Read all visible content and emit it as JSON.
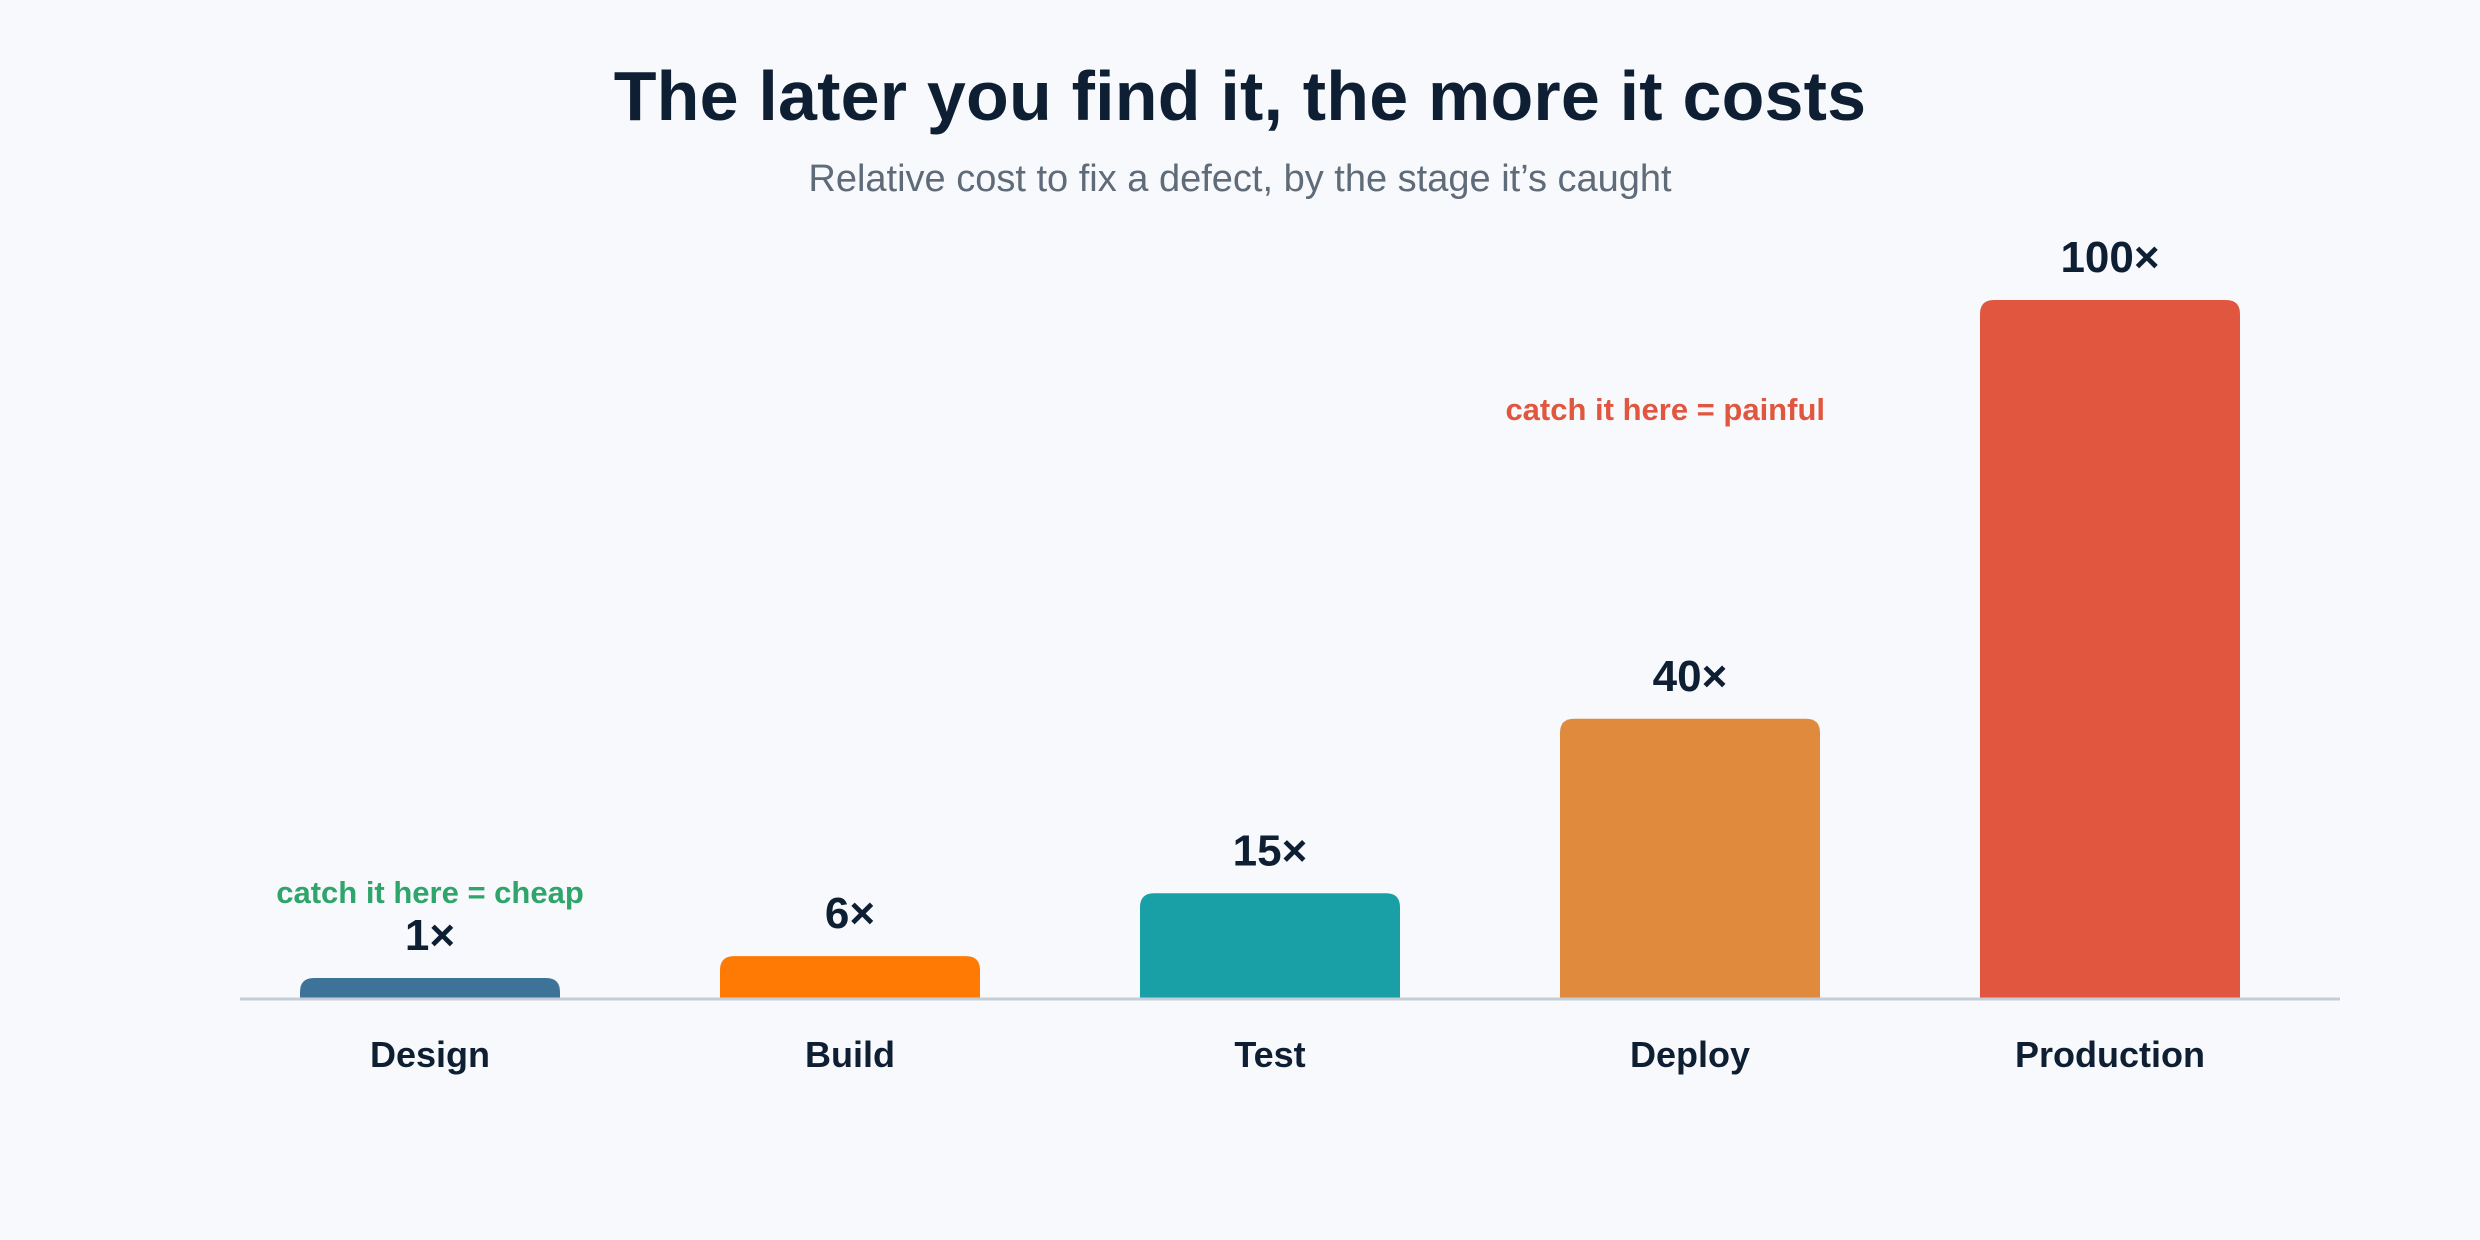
{
  "chart_data": {
    "type": "bar",
    "title": "The later you find it, the more it costs",
    "subtitle": "Relative cost to fix a defect, by the stage it’s caught",
    "xlabel": "",
    "ylabel": "",
    "ylim": [
      0,
      100
    ],
    "grid": false,
    "legend": "none",
    "categories": [
      "Design",
      "Build",
      "Test",
      "Deploy",
      "Production"
    ],
    "values": [
      1,
      6,
      15,
      40,
      100
    ],
    "value_labels": [
      "1×",
      "6×",
      "15×",
      "40×",
      "100×"
    ],
    "colors": [
      "#3e7399",
      "#ff7a05",
      "#18a0a6",
      "#e08a3e",
      "#e0563e"
    ],
    "axis_color": "#c5ced8",
    "annotations": [
      {
        "text": "catch it here = cheap",
        "category": "Design",
        "color": "#2fa56c"
      },
      {
        "text": "catch it here = painful",
        "category": "Production",
        "color": "#e0563e"
      }
    ]
  }
}
